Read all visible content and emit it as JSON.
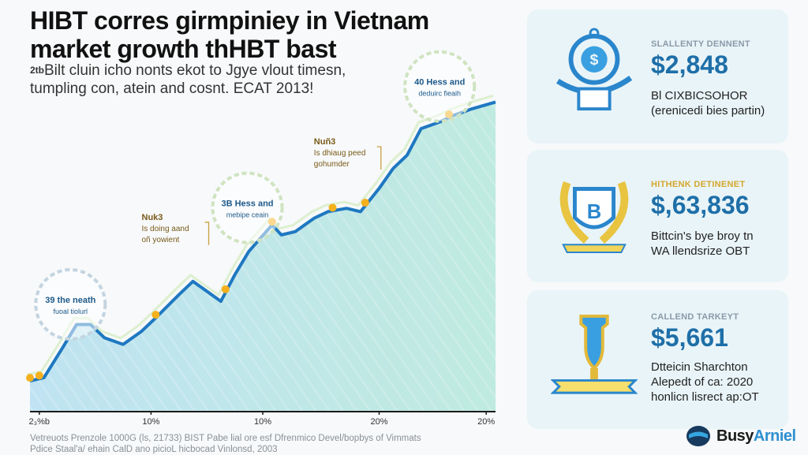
{
  "header": {
    "title_line1": "HIBT corres girmpiniey in Vietnam",
    "title_line2": "market growth thHBT bast",
    "subtitle_prefix": "2tb",
    "subtitle_line1": "Bilt cluin icho nonts ekot to Jgye vlout timesn,",
    "subtitle_line2": "tumpling con, atein and cosnt. ECAT 2013!"
  },
  "chart_data": {
    "type": "area",
    "title": "HIBT corres girmpiniey in Vietnam market growth thHBT bast",
    "xlabel": "",
    "ylabel": "",
    "xlim": [
      0,
      100
    ],
    "ylim": [
      0,
      100
    ],
    "grid": false,
    "x": [
      0,
      3,
      7,
      10,
      13,
      16,
      20,
      24,
      27,
      32,
      35,
      38,
      41,
      44,
      47,
      52,
      54,
      57,
      61,
      64,
      68,
      71,
      75,
      78,
      81,
      84,
      88,
      91,
      95,
      100
    ],
    "values": [
      9,
      10,
      19,
      26,
      26,
      22,
      20,
      24,
      28,
      35,
      39,
      36,
      33,
      41,
      48,
      56,
      53,
      54,
      58,
      60,
      61,
      60,
      67,
      73,
      77,
      85,
      87,
      89,
      91,
      93
    ],
    "x_tick_labels": [
      "2₃%b",
      "10%",
      "10%",
      "20%",
      "20%"
    ],
    "x_tick_positions": [
      2,
      26,
      50,
      75,
      98
    ],
    "highlight_points_x": [
      0,
      2,
      27,
      42,
      52,
      65,
      72,
      90
    ],
    "annotations": [
      {
        "kind": "circle",
        "line1": "39 the neath",
        "line2": "fuoal tiolurl",
        "at_x": 7
      },
      {
        "kind": "label",
        "line1": "Nuk3",
        "line2": "Is doing aand",
        "line3": "oñ yowient",
        "at_x": 35
      },
      {
        "kind": "circle",
        "line1": "3B Hess and",
        "line2": "mebipe ceain",
        "at_x": 45
      },
      {
        "kind": "label",
        "line1": "Nuñ3",
        "line2": "Is dhiaug peed",
        "line3": "gohumder",
        "at_x": 72
      },
      {
        "kind": "circle",
        "line1": "40 Hess and",
        "line2": "deduirc fieaih",
        "at_x": 88
      }
    ],
    "colors": {
      "line": "#1f78c1",
      "fill_top": "#bfeadf",
      "fill_bottom": "#bfe3f2",
      "highlight": "#f5b01e"
    }
  },
  "cards": [
    {
      "kicker": "SLALLENTY DENNENT",
      "kicker_color": "#8a9aa8",
      "value": "$2,848",
      "desc_line1": "Bl CIXBICSOHOR",
      "desc_line2": "(erenicedi bies partin)",
      "icon": "money-bag-icon"
    },
    {
      "kicker": "HITHENK DETINENET",
      "kicker_color": "#d4a72c",
      "value": "$,63,836",
      "desc_line1": "Bittcin's bye broy tn",
      "desc_line2": "WA llendsrize OBT",
      "icon": "crest-icon"
    },
    {
      "kicker": "CALLEND TARKEYT",
      "kicker_color": "#8a9aa8",
      "value": "$5,661",
      "desc_line1": "Dtteicin Sharchton",
      "desc_line2": "Alepedt of ca: 2020",
      "desc_line3": "honlicn lisrect ap:OT",
      "icon": "trophy-icon"
    }
  ],
  "footer": {
    "line1": "Vetreuots Prenzole 1000G (ls, 21733) BIST Pabe lial ore esf Dfrenmico Devel/bopbys of Vimmats",
    "line2": "Pdice Staal'a/ ehain CalD ano picioL hicbocad Vinlonsd, 2003"
  },
  "logo": {
    "part1": "Busy",
    "part2": "Arniel"
  }
}
